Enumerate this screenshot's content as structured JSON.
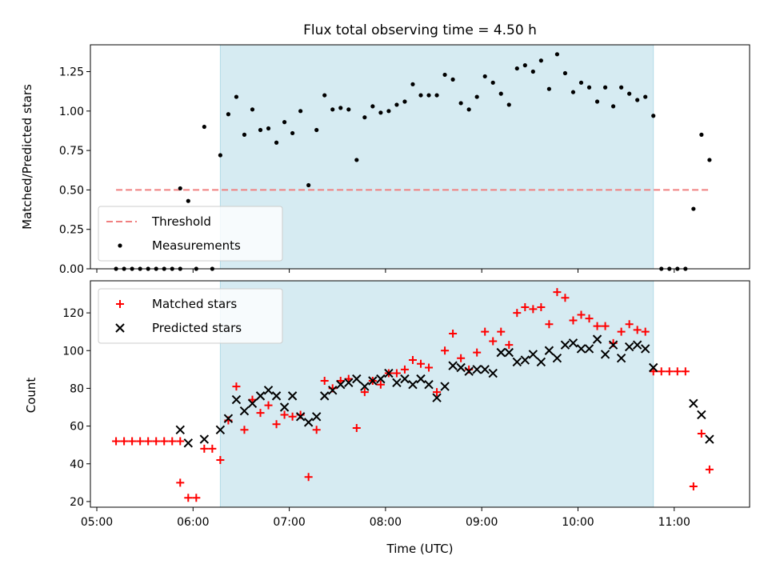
{
  "chart_data": [
    {
      "type": "scatter",
      "title": "Flux total observing time = 4.50 h",
      "ylabel": "Matched/Predicted stars",
      "xlabel": "",
      "ylim": [
        0,
        1.42
      ],
      "yticks": [
        "0.00",
        "0.25",
        "0.50",
        "0.75",
        "1.00",
        "1.25"
      ],
      "grid": false,
      "legend_position": "lower-left",
      "shaded_interval": [
        "06:17",
        "10:47"
      ],
      "shade_color": "#add8e6",
      "threshold": {
        "name": "Threshold",
        "value": 0.5,
        "x_range": [
          "05:12",
          "11:22"
        ],
        "color": "#f08080"
      },
      "series": [
        {
          "name": "Measurements",
          "color": "#000000",
          "points": [
            [
              "05:12",
              0
            ],
            [
              "05:17",
              0
            ],
            [
              "05:22",
              0
            ],
            [
              "05:27",
              0
            ],
            [
              "05:32",
              0
            ],
            [
              "05:37",
              0
            ],
            [
              "05:42",
              0
            ],
            [
              "05:47",
              0
            ],
            [
              "05:52",
              0
            ],
            [
              "05:52",
              0.51
            ],
            [
              "05:57",
              0.43
            ],
            [
              "06:02",
              0
            ],
            [
              "06:07",
              0.9
            ],
            [
              "06:12",
              0
            ],
            [
              "06:17",
              0.72
            ],
            [
              "06:22",
              0.98
            ],
            [
              "06:27",
              1.09
            ],
            [
              "06:32",
              0.85
            ],
            [
              "06:37",
              1.01
            ],
            [
              "06:42",
              0.88
            ],
            [
              "06:47",
              0.89
            ],
            [
              "06:52",
              0.8
            ],
            [
              "06:57",
              0.93
            ],
            [
              "07:02",
              0.86
            ],
            [
              "07:07",
              1.0
            ],
            [
              "07:12",
              0.53
            ],
            [
              "07:17",
              0.88
            ],
            [
              "07:22",
              1.1
            ],
            [
              "07:27",
              1.01
            ],
            [
              "07:32",
              1.02
            ],
            [
              "07:37",
              1.01
            ],
            [
              "07:42",
              0.69
            ],
            [
              "07:47",
              0.96
            ],
            [
              "07:52",
              1.03
            ],
            [
              "07:57",
              0.99
            ],
            [
              "08:02",
              1.0
            ],
            [
              "08:07",
              1.04
            ],
            [
              "08:12",
              1.06
            ],
            [
              "08:17",
              1.17
            ],
            [
              "08:22",
              1.1
            ],
            [
              "08:27",
              1.1
            ],
            [
              "08:32",
              1.1
            ],
            [
              "08:37",
              1.23
            ],
            [
              "08:42",
              1.2
            ],
            [
              "08:47",
              1.05
            ],
            [
              "08:52",
              1.01
            ],
            [
              "08:57",
              1.09
            ],
            [
              "09:02",
              1.22
            ],
            [
              "09:07",
              1.18
            ],
            [
              "09:12",
              1.11
            ],
            [
              "09:17",
              1.04
            ],
            [
              "09:22",
              1.27
            ],
            [
              "09:27",
              1.29
            ],
            [
              "09:32",
              1.25
            ],
            [
              "09:37",
              1.32
            ],
            [
              "09:42",
              1.14
            ],
            [
              "09:47",
              1.36
            ],
            [
              "09:52",
              1.24
            ],
            [
              "09:57",
              1.12
            ],
            [
              "10:02",
              1.18
            ],
            [
              "10:07",
              1.15
            ],
            [
              "10:12",
              1.06
            ],
            [
              "10:17",
              1.15
            ],
            [
              "10:22",
              1.03
            ],
            [
              "10:27",
              1.15
            ],
            [
              "10:32",
              1.11
            ],
            [
              "10:37",
              1.07
            ],
            [
              "10:42",
              1.09
            ],
            [
              "10:47",
              0.97
            ],
            [
              "10:52",
              0
            ],
            [
              "10:57",
              0
            ],
            [
              "11:02",
              0
            ],
            [
              "11:07",
              0
            ],
            [
              "11:12",
              0.38
            ],
            [
              "11:17",
              0.85
            ],
            [
              "11:22",
              0.69
            ]
          ]
        }
      ]
    },
    {
      "type": "scatter",
      "title": "",
      "ylabel": "Count",
      "xlabel": "Time (UTC)",
      "ylim": [
        17,
        137
      ],
      "yticks": [
        "20",
        "40",
        "60",
        "80",
        "100",
        "120"
      ],
      "xticks": [
        "05:00",
        "06:00",
        "07:00",
        "08:00",
        "09:00",
        "10:00",
        "11:00"
      ],
      "grid": false,
      "legend_position": "upper-left",
      "shaded_interval": [
        "06:17",
        "10:47"
      ],
      "series": [
        {
          "name": "Matched stars",
          "marker": "plus",
          "color": "#ff0000",
          "points": [
            [
              "05:12",
              52
            ],
            [
              "05:17",
              52
            ],
            [
              "05:22",
              52
            ],
            [
              "05:27",
              52
            ],
            [
              "05:32",
              52
            ],
            [
              "05:37",
              52
            ],
            [
              "05:42",
              52
            ],
            [
              "05:47",
              52
            ],
            [
              "05:52",
              52
            ],
            [
              "05:52",
              30
            ],
            [
              "05:57",
              22
            ],
            [
              "06:02",
              22
            ],
            [
              "06:07",
              48
            ],
            [
              "06:12",
              48
            ],
            [
              "06:17",
              42
            ],
            [
              "06:22",
              63
            ],
            [
              "06:27",
              81
            ],
            [
              "06:32",
              58
            ],
            [
              "06:37",
              74
            ],
            [
              "06:42",
              67
            ],
            [
              "06:47",
              71
            ],
            [
              "06:52",
              61
            ],
            [
              "06:57",
              66
            ],
            [
              "07:02",
              65
            ],
            [
              "07:07",
              66
            ],
            [
              "07:12",
              33
            ],
            [
              "07:17",
              58
            ],
            [
              "07:22",
              84
            ],
            [
              "07:27",
              80
            ],
            [
              "07:32",
              84
            ],
            [
              "07:37",
              85
            ],
            [
              "07:42",
              59
            ],
            [
              "07:47",
              78
            ],
            [
              "07:52",
              84
            ],
            [
              "07:57",
              82
            ],
            [
              "08:02",
              88
            ],
            [
              "08:07",
              88
            ],
            [
              "08:12",
              90
            ],
            [
              "08:17",
              95
            ],
            [
              "08:22",
              93
            ],
            [
              "08:27",
              91
            ],
            [
              "08:32",
              78
            ],
            [
              "08:37",
              100
            ],
            [
              "08:42",
              109
            ],
            [
              "08:47",
              96
            ],
            [
              "08:52",
              90
            ],
            [
              "08:57",
              99
            ],
            [
              "09:02",
              110
            ],
            [
              "09:07",
              105
            ],
            [
              "09:12",
              110
            ],
            [
              "09:17",
              103
            ],
            [
              "09:22",
              120
            ],
            [
              "09:27",
              123
            ],
            [
              "09:32",
              122
            ],
            [
              "09:37",
              123
            ],
            [
              "09:42",
              114
            ],
            [
              "09:47",
              131
            ],
            [
              "09:52",
              128
            ],
            [
              "09:57",
              116
            ],
            [
              "10:02",
              119
            ],
            [
              "10:07",
              117
            ],
            [
              "10:12",
              113
            ],
            [
              "10:17",
              113
            ],
            [
              "10:22",
              104
            ],
            [
              "10:27",
              110
            ],
            [
              "10:32",
              114
            ],
            [
              "10:37",
              111
            ],
            [
              "10:42",
              110
            ],
            [
              "10:47",
              89
            ],
            [
              "10:52",
              89
            ],
            [
              "10:57",
              89
            ],
            [
              "11:02",
              89
            ],
            [
              "11:07",
              89
            ],
            [
              "11:12",
              28
            ],
            [
              "11:17",
              56
            ],
            [
              "11:22",
              37
            ]
          ]
        },
        {
          "name": "Predicted stars",
          "marker": "x",
          "color": "#000000",
          "points": [
            [
              "05:52",
              58
            ],
            [
              "05:57",
              51
            ],
            [
              "06:07",
              53
            ],
            [
              "06:17",
              58
            ],
            [
              "06:22",
              64
            ],
            [
              "06:27",
              74
            ],
            [
              "06:32",
              68
            ],
            [
              "06:37",
              72
            ],
            [
              "06:42",
              76
            ],
            [
              "06:47",
              79
            ],
            [
              "06:52",
              76
            ],
            [
              "06:57",
              70
            ],
            [
              "07:02",
              76
            ],
            [
              "07:07",
              65
            ],
            [
              "07:12",
              62
            ],
            [
              "07:17",
              65
            ],
            [
              "07:22",
              76
            ],
            [
              "07:27",
              79
            ],
            [
              "07:32",
              82
            ],
            [
              "07:37",
              83
            ],
            [
              "07:42",
              85
            ],
            [
              "07:47",
              81
            ],
            [
              "07:52",
              84
            ],
            [
              "07:57",
              85
            ],
            [
              "08:02",
              88
            ],
            [
              "08:07",
              83
            ],
            [
              "08:12",
              85
            ],
            [
              "08:17",
              82
            ],
            [
              "08:22",
              85
            ],
            [
              "08:27",
              82
            ],
            [
              "08:32",
              75
            ],
            [
              "08:37",
              81
            ],
            [
              "08:42",
              92
            ],
            [
              "08:47",
              91
            ],
            [
              "08:52",
              89
            ],
            [
              "08:57",
              90
            ],
            [
              "09:02",
              90
            ],
            [
              "09:07",
              88
            ],
            [
              "09:12",
              99
            ],
            [
              "09:17",
              99
            ],
            [
              "09:22",
              94
            ],
            [
              "09:27",
              95
            ],
            [
              "09:32",
              98
            ],
            [
              "09:37",
              94
            ],
            [
              "09:42",
              100
            ],
            [
              "09:47",
              96
            ],
            [
              "09:52",
              103
            ],
            [
              "09:57",
              104
            ],
            [
              "10:02",
              101
            ],
            [
              "10:07",
              101
            ],
            [
              "10:12",
              106
            ],
            [
              "10:17",
              98
            ],
            [
              "10:22",
              103
            ],
            [
              "10:27",
              96
            ],
            [
              "10:32",
              102
            ],
            [
              "10:37",
              103
            ],
            [
              "10:42",
              101
            ],
            [
              "10:47",
              91
            ],
            [
              "11:12",
              72
            ],
            [
              "11:17",
              66
            ],
            [
              "11:22",
              53
            ]
          ]
        }
      ]
    }
  ]
}
